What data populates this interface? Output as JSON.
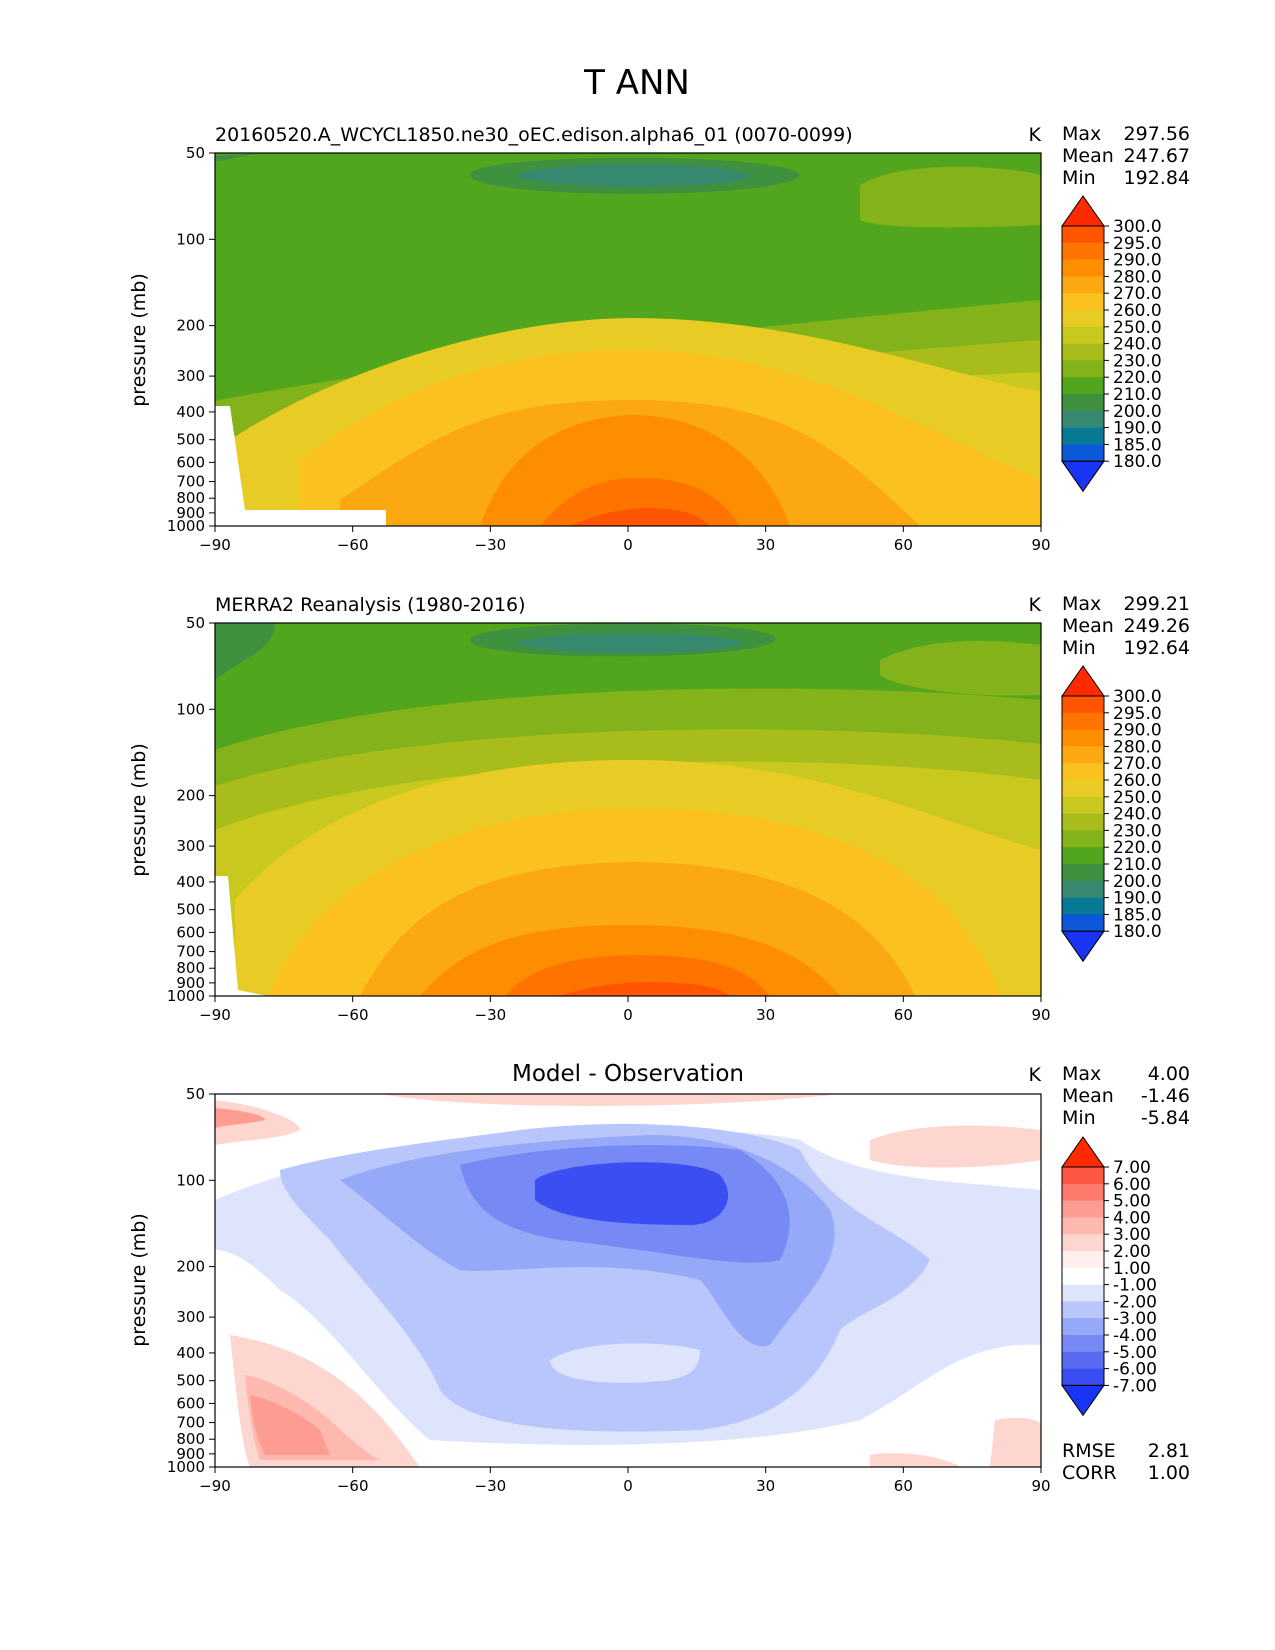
{
  "figure_title": "T ANN",
  "chart_data": [
    {
      "type": "heatmap",
      "panel": "test",
      "title": "20160520.A_WCYCL1850.ne30_oEC.edison.alpha6_01 (0070-0099)",
      "units": "K",
      "ylabel": "pressure (mb)",
      "xlabel": "",
      "xlim": [
        -90,
        90
      ],
      "x_ticks": [
        "−90",
        "−60",
        "−30",
        "0",
        "30",
        "60",
        "90"
      ],
      "y_ticks": [
        "50",
        "100",
        "200",
        "300",
        "400",
        "500",
        "600",
        "700",
        "800",
        "900",
        "1000"
      ],
      "stats": [
        {
          "label": "Max",
          "value": "297.56"
        },
        {
          "label": "Mean",
          "value": "247.67"
        },
        {
          "label": "Min",
          "value": "192.84"
        }
      ],
      "colorbar_levels": [
        "300.0",
        "295.0",
        "290.0",
        "280.0",
        "270.0",
        "260.0",
        "250.0",
        "240.0",
        "230.0",
        "220.0",
        "210.0",
        "200.0",
        "190.0",
        "185.0",
        "180.0"
      ],
      "colorbar_colors": [
        "#ff2a00",
        "#ff5500",
        "#ff7400",
        "#fd8e00",
        "#fba812",
        "#fbc21f",
        "#e8cc25",
        "#c8c81e",
        "#a8bd1c",
        "#84b21a",
        "#52a61d",
        "#3f913f",
        "#378a6f",
        "#087a96",
        "#0d58d9",
        "#1a34f5"
      ]
    },
    {
      "type": "heatmap",
      "panel": "reference",
      "title": "MERRA2 Reanalysis (1980-2016)",
      "units": "K",
      "ylabel": "pressure (mb)",
      "xlabel": "",
      "xlim": [
        -90,
        90
      ],
      "x_ticks": [
        "−90",
        "−60",
        "−30",
        "0",
        "30",
        "60",
        "90"
      ],
      "y_ticks": [
        "50",
        "100",
        "200",
        "300",
        "400",
        "500",
        "600",
        "700",
        "800",
        "900",
        "1000"
      ],
      "stats": [
        {
          "label": "Max",
          "value": "299.21"
        },
        {
          "label": "Mean",
          "value": "249.26"
        },
        {
          "label": "Min",
          "value": "192.64"
        }
      ],
      "colorbar_levels": [
        "300.0",
        "295.0",
        "290.0",
        "280.0",
        "270.0",
        "260.0",
        "250.0",
        "240.0",
        "230.0",
        "220.0",
        "210.0",
        "200.0",
        "190.0",
        "185.0",
        "180.0"
      ],
      "colorbar_colors": [
        "#ff2a00",
        "#ff5500",
        "#ff7400",
        "#fd8e00",
        "#fba812",
        "#fbc21f",
        "#e8cc25",
        "#c8c81e",
        "#a8bd1c",
        "#84b21a",
        "#52a61d",
        "#3f913f",
        "#378a6f",
        "#087a96",
        "#0d58d9",
        "#1a34f5"
      ]
    },
    {
      "type": "heatmap",
      "panel": "difference",
      "title": "Model - Observation",
      "units": "K",
      "ylabel": "pressure (mb)",
      "xlabel": "",
      "xlim": [
        -90,
        90
      ],
      "x_ticks": [
        "−90",
        "−60",
        "−30",
        "0",
        "30",
        "60",
        "90"
      ],
      "y_ticks": [
        "50",
        "100",
        "200",
        "300",
        "400",
        "500",
        "600",
        "700",
        "800",
        "900",
        "1000"
      ],
      "stats": [
        {
          "label": "Max",
          "value": "4.00"
        },
        {
          "label": "Mean",
          "value": "-1.46"
        },
        {
          "label": "Min",
          "value": "-5.84"
        }
      ],
      "extra_stats": [
        {
          "label": "RMSE",
          "value": "2.81"
        },
        {
          "label": "CORR",
          "value": "1.00"
        }
      ],
      "colorbar_levels": [
        "7.00",
        "6.00",
        "5.00",
        "4.00",
        "3.00",
        "2.00",
        "1.00",
        "-1.00",
        "-2.00",
        "-3.00",
        "-4.00",
        "-5.00",
        "-6.00",
        "-7.00"
      ],
      "colorbar_colors": [
        "#ff2a00",
        "#fd5642",
        "#fc7b6c",
        "#fd9c91",
        "#fdb9b0",
        "#fdd6d0",
        "#fff0ee",
        "#ffffff",
        "#dde4fc",
        "#b8c6fb",
        "#96a8f8",
        "#7789f5",
        "#5a6bf2",
        "#3a4ef2",
        "#1a34f5"
      ]
    }
  ]
}
